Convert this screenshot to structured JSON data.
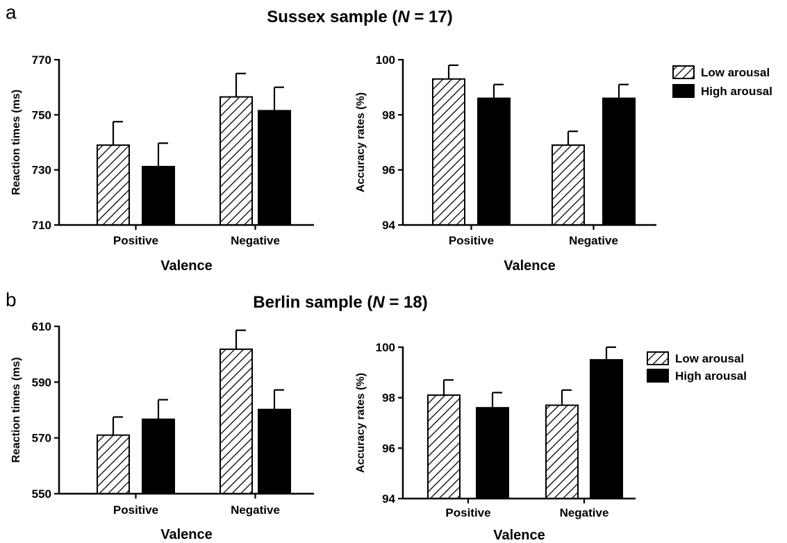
{
  "panels": [
    {
      "letter": "a",
      "title": "Sussex sample (",
      "n_symbol": "N",
      "n_value": " = 17)"
    },
    {
      "letter": "b",
      "title": "Berlin sample (",
      "n_symbol": "N",
      "n_value": " = 18)"
    }
  ],
  "legend": {
    "low": "Low arousal",
    "high": "High arousal"
  },
  "colors": {
    "low_fill": "#ffffff",
    "hatch": "#000000",
    "high_fill": "#000000"
  },
  "chart_data": [
    {
      "type": "bar",
      "panel": "a",
      "categories": [
        "Positive",
        "Negative"
      ],
      "xlabel": "Valence",
      "ylabel": "Reaction times (ms)",
      "ylim": [
        710,
        770
      ],
      "yticks": [
        710,
        730,
        750,
        770
      ],
      "series": [
        {
          "name": "Low arousal",
          "values": [
            739,
            756.5
          ],
          "errors": [
            8.5,
            8.5
          ]
        },
        {
          "name": "High arousal",
          "values": [
            731.2,
            751.5
          ],
          "errors": [
            8.5,
            8.5
          ]
        }
      ],
      "legend": "none"
    },
    {
      "type": "bar",
      "panel": "a",
      "categories": [
        "Positive",
        "Negative"
      ],
      "xlabel": "Valence",
      "ylabel": "Accuracy rates (%)",
      "ylim": [
        94,
        100
      ],
      "yticks": [
        94,
        96,
        98,
        100
      ],
      "series": [
        {
          "name": "Low arousal",
          "values": [
            99.3,
            96.9
          ],
          "errors": [
            0.5,
            0.5
          ]
        },
        {
          "name": "High arousal",
          "values": [
            98.6,
            98.6
          ],
          "errors": [
            0.5,
            0.5
          ]
        }
      ],
      "legend": "right"
    },
    {
      "type": "bar",
      "panel": "b",
      "categories": [
        "Positive",
        "Negative"
      ],
      "xlabel": "Valence",
      "ylabel": "Reaction times (ms)",
      "ylim": [
        550,
        610
      ],
      "yticks": [
        550,
        570,
        590,
        610
      ],
      "series": [
        {
          "name": "Low arousal",
          "values": [
            571,
            601.8
          ],
          "errors": [
            6.5,
            6.8
          ]
        },
        {
          "name": "High arousal",
          "values": [
            576.7,
            580.2
          ],
          "errors": [
            7,
            7
          ]
        }
      ],
      "legend": "none"
    },
    {
      "type": "bar",
      "panel": "b",
      "categories": [
        "Positive",
        "Negative"
      ],
      "xlabel": "Valence",
      "ylabel": "Accuracy rates (%)",
      "ylim": [
        94,
        100
      ],
      "yticks": [
        94,
        96,
        98,
        100
      ],
      "series": [
        {
          "name": "Low arousal",
          "values": [
            98.1,
            97.7
          ],
          "errors": [
            0.6,
            0.6
          ]
        },
        {
          "name": "High arousal",
          "values": [
            97.6,
            99.5
          ],
          "errors": [
            0.6,
            0.6
          ]
        }
      ],
      "legend": "right"
    }
  ]
}
